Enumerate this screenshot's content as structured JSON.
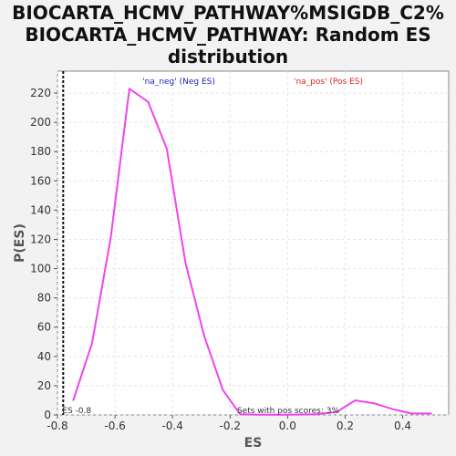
{
  "chart_data": {
    "type": "line",
    "title_lines": [
      "BIOCARTA_HCMV_PATHWAY%MSIGDB_C2%",
      "BIOCARTA_HCMV_PATHWAY: Random ES",
      "distribution"
    ],
    "xlabel": "ES",
    "ylabel": "P(ES)",
    "xlim": [
      -0.8,
      0.56
    ],
    "ylim": [
      0,
      235
    ],
    "xticks": [
      -0.8,
      -0.6,
      -0.4,
      -0.2,
      0.0,
      0.2,
      0.4
    ],
    "xtick_labels": [
      "-0.8",
      "-0.6",
      "-0.4",
      "-0.2",
      "0.0",
      "0.2",
      "0.4"
    ],
    "yticks": [
      0,
      20,
      40,
      60,
      80,
      100,
      120,
      140,
      160,
      180,
      200,
      220
    ],
    "ytick_labels": [
      "0",
      "20",
      "40",
      "60",
      "80",
      "100",
      "120",
      "140",
      "160",
      "180",
      "200",
      "220"
    ],
    "grid": true,
    "series": [
      {
        "color": "#ee44ee",
        "x": [
          -0.745,
          -0.68,
          -0.615,
          -0.55,
          -0.485,
          -0.42,
          -0.355,
          -0.29,
          -0.225,
          -0.165,
          -0.1,
          0.0,
          0.1,
          0.17,
          0.235,
          0.3,
          0.365,
          0.43,
          0.5
        ],
        "y": [
          10,
          49,
          121,
          223,
          214,
          182,
          104,
          54,
          17,
          0.5,
          0.2,
          0.1,
          0.5,
          2,
          10,
          8,
          4,
          1,
          1
        ]
      }
    ],
    "marker_line": {
      "x": -0.78,
      "label": "ES -0.8"
    },
    "annotations": {
      "neg_label": "'na_neg' (Neg ES)",
      "neg_color": "#2222bb",
      "pos_label": "'na_pos' (Pos ES)",
      "pos_color": "#dd2222",
      "bottom_text": "Sets with pos scores: 3%"
    }
  }
}
